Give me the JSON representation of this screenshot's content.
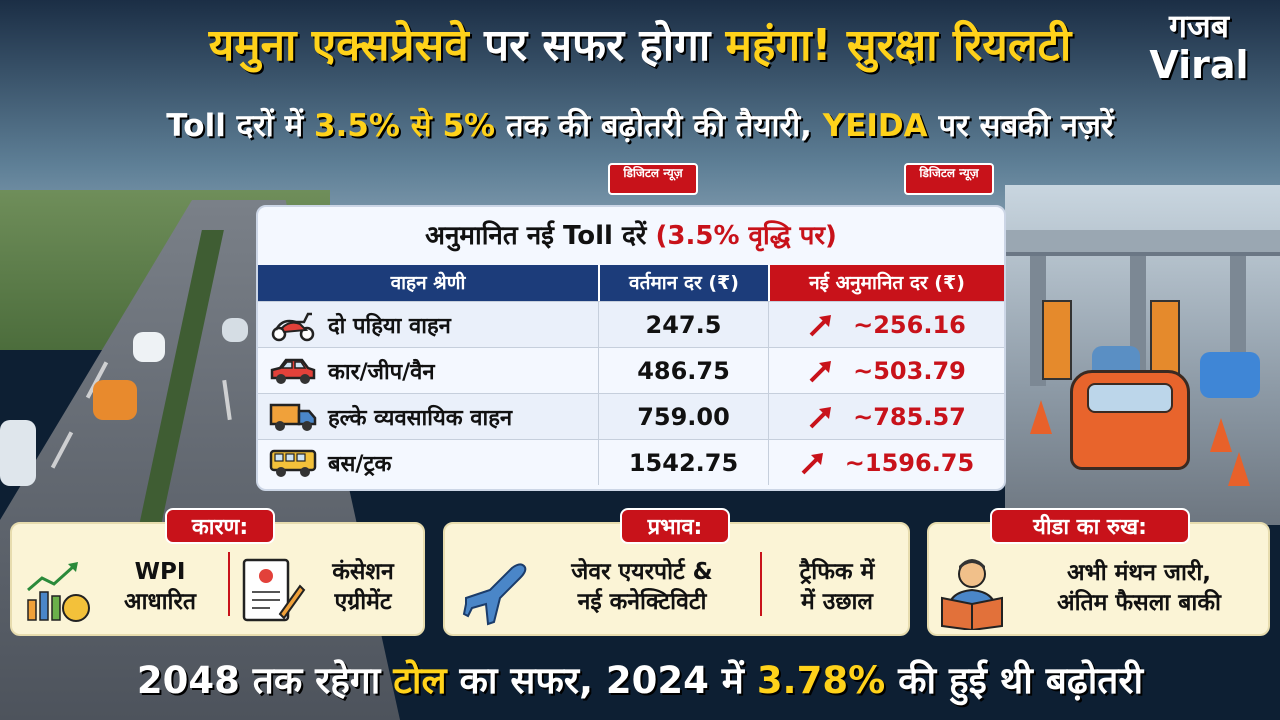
{
  "header": {
    "title_part1": "यमुना एक्सप्रेसवे",
    "title_part2": "पर सफर होगा",
    "title_part3": "महंगा!",
    "title_part4": "सुरक्षा रियलटी",
    "subtitle_part1": "Toll दरों में",
    "subtitle_part2": "3.5% से 5%",
    "subtitle_part3": "तक की बढ़ोतरी की तैयारी,",
    "subtitle_part4": "YEIDA",
    "subtitle_part5": "पर सबकी नज़रें"
  },
  "logo": {
    "line1": "गजब",
    "line2": "Viral"
  },
  "badges": [
    {
      "text": "डिजिटल न्यूज़"
    },
    {
      "text": "डिजिटल न्यूज़"
    }
  ],
  "table": {
    "title_main": "अनुमानित नई Toll दरें",
    "title_note": "(3.5% वृद्धि पर)",
    "headers": {
      "category": "वाहन श्रेणी",
      "current": "वर्तमान दर (₹)",
      "new": "नई अनुमानित दर (₹)"
    },
    "rows": [
      {
        "icon": "scooter-icon",
        "category": "दो पहिया वाहन",
        "current": "247.5",
        "new": "~256.16"
      },
      {
        "icon": "car-icon",
        "category": "कार/जीप/वैन",
        "current": "486.75",
        "new": "~503.79"
      },
      {
        "icon": "truck-icon",
        "category": "हल्के व्यवसायिक वाहन",
        "current": "759.00",
        "new": "~785.57"
      },
      {
        "icon": "bus-icon",
        "category": "बस/ट्रक",
        "current": "1542.75",
        "new": "~1596.75"
      }
    ]
  },
  "panels": {
    "reason": {
      "tag": "कारण:",
      "item1": "WPI",
      "item1b": "आधारित",
      "item2": "कंसेशन",
      "item2b": "एग्रीमेंट"
    },
    "impact": {
      "tag": "प्रभाव:",
      "item1": "जेवर एयरपोर्ट &",
      "item1b": "नई कनेक्टिविटी",
      "item2": "ट्रैफिक में",
      "item2b": "में उछाल"
    },
    "stance": {
      "tag": "यीडा का रुख:",
      "line1": "अभी मंथन जारी,",
      "line2": "अंतिम फैसला बाकी"
    }
  },
  "footer": {
    "part1": "2048 तक रहेगा",
    "part2": "टोल",
    "part3": "का सफर, 2024 में",
    "part4": "3.78%",
    "part5": "की हुई थी बढ़ोतरी"
  },
  "colors": {
    "accent_yellow": "#ffd21a",
    "accent_red": "#c8121a",
    "header_blue": "#1c3c7a"
  }
}
